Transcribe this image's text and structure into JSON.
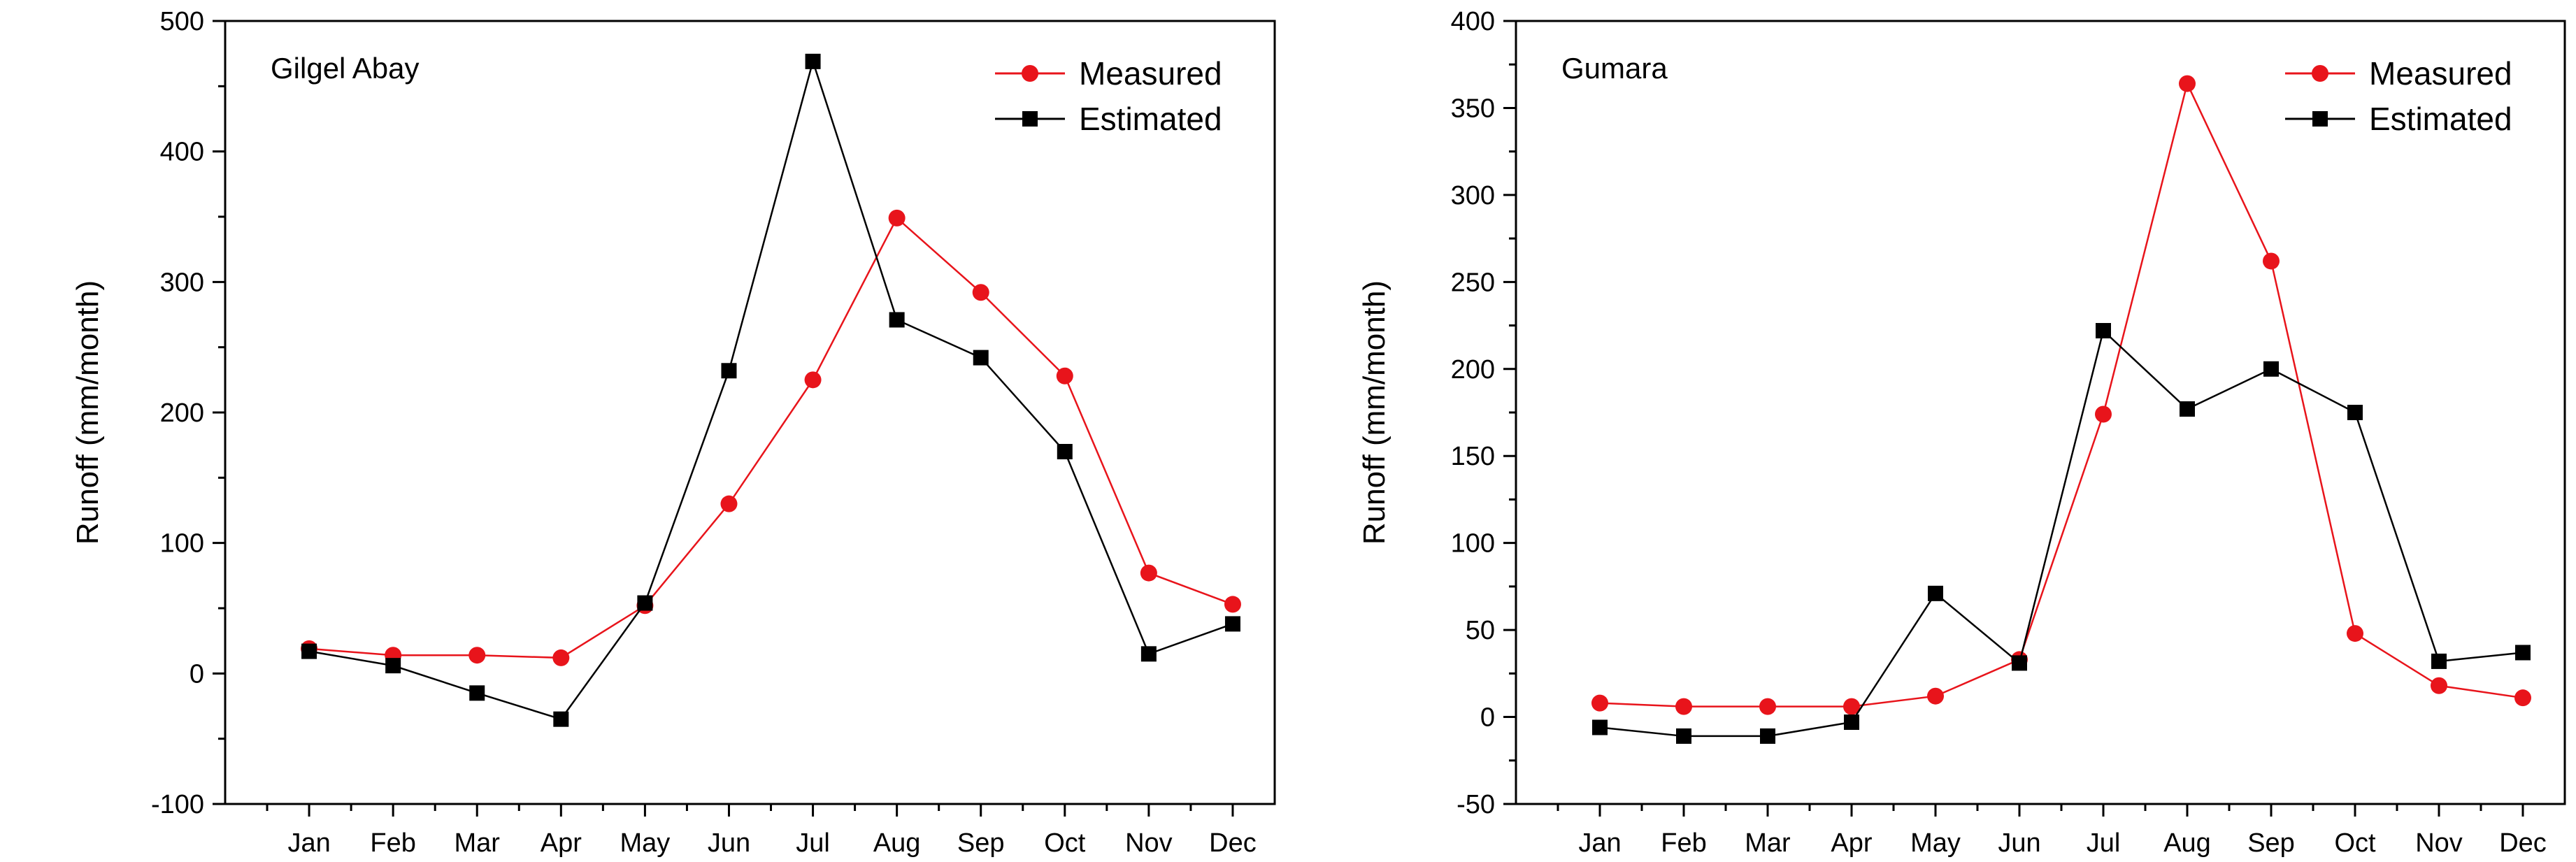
{
  "chart_data": [
    {
      "type": "line",
      "title": "Gilgel Abay",
      "xlabel": "",
      "ylabel": "Runoff (mm/month)",
      "categories": [
        "Jan",
        "Feb",
        "Mar",
        "Apr",
        "May",
        "Jun",
        "Jul",
        "Aug",
        "Sep",
        "Oct",
        "Nov",
        "Dec"
      ],
      "ylim": [
        -100,
        500
      ],
      "yticks": [
        -100,
        0,
        100,
        200,
        300,
        400,
        500
      ],
      "legend_position": "top-right",
      "series": [
        {
          "name": "Measured",
          "color": "#e8141b",
          "marker": "circle",
          "values": [
            19,
            14,
            14,
            12,
            52,
            130,
            225,
            349,
            292,
            228,
            77,
            53
          ]
        },
        {
          "name": "Estimated",
          "color": "#000000",
          "marker": "square",
          "values": [
            17,
            6,
            -15,
            -35,
            54,
            232,
            469,
            271,
            242,
            170,
            15,
            38
          ]
        }
      ]
    },
    {
      "type": "line",
      "title": "Gumara",
      "xlabel": "",
      "ylabel": "Runoff (mm/month)",
      "categories": [
        "Jan",
        "Feb",
        "Mar",
        "Apr",
        "May",
        "Jun",
        "Jul",
        "Aug",
        "Sep",
        "Oct",
        "Nov",
        "Dec"
      ],
      "ylim": [
        -50,
        400
      ],
      "yticks": [
        -50,
        0,
        50,
        100,
        150,
        200,
        250,
        300,
        350,
        400
      ],
      "legend_position": "top-right",
      "series": [
        {
          "name": "Measured",
          "color": "#e8141b",
          "marker": "circle",
          "values": [
            8,
            6,
            6,
            6,
            12,
            33,
            174,
            364,
            262,
            48,
            18,
            11
          ]
        },
        {
          "name": "Estimated",
          "color": "#000000",
          "marker": "square",
          "values": [
            -6,
            -11,
            -11,
            -3,
            71,
            31,
            222,
            177,
            200,
            175,
            32,
            37
          ]
        }
      ]
    }
  ]
}
